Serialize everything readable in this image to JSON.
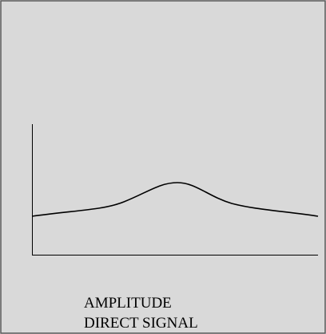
{
  "caption": [
    "AMPLITUDE",
    "DIRECT SIGNAL"
  ]
}
